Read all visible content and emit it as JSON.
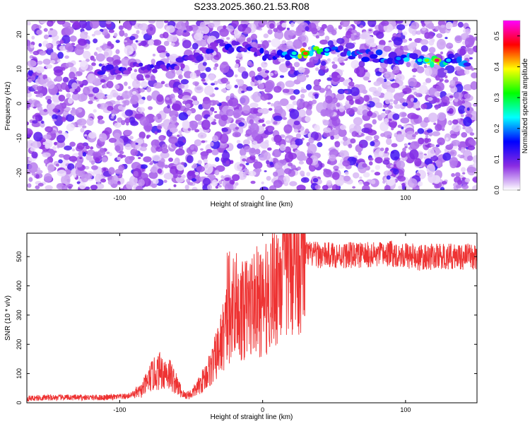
{
  "figure": {
    "title": "S233.2025.360.21.53.R08"
  },
  "chart_data": [
    {
      "type": "heatmap",
      "xlabel": "Height of straight line (km)",
      "ylabel": "Frequency (Hz)",
      "xlim": [
        -165,
        150
      ],
      "ylim": [
        -25,
        24
      ],
      "xticks": [
        -100,
        0,
        100
      ],
      "yticks": [
        -20,
        -10,
        0,
        10,
        20
      ],
      "colorbar": {
        "label": "Normalized spectral amplitude",
        "range": [
          0,
          0.55
        ],
        "ticks": [
          0.0,
          0.1,
          0.2,
          0.3,
          0.4,
          0.5
        ],
        "colormap": [
          "#ffffff",
          "#8a2be2",
          "#0000ff",
          "#00ffff",
          "#00ff00",
          "#ffff00",
          "#ff0000",
          "#ff00ff"
        ]
      },
      "ridge": {
        "note_free": true,
        "points": [
          {
            "x": -115,
            "y": 9,
            "v": 0.12
          },
          {
            "x": -95,
            "y": 10,
            "v": 0.14
          },
          {
            "x": -60,
            "y": 11,
            "v": 0.12
          },
          {
            "x": -30,
            "y": 17,
            "v": 0.15
          },
          {
            "x": -10,
            "y": 16,
            "v": 0.14
          },
          {
            "x": 5,
            "y": 13,
            "v": 0.16
          },
          {
            "x": 12,
            "y": 14,
            "v": 0.18
          },
          {
            "x": 22,
            "y": 14.5,
            "v": 0.25
          },
          {
            "x": 30,
            "y": 14.5,
            "v": 0.45
          },
          {
            "x": 45,
            "y": 15.5,
            "v": 0.22
          },
          {
            "x": 70,
            "y": 14,
            "v": 0.18
          },
          {
            "x": 95,
            "y": 13,
            "v": 0.2
          },
          {
            "x": 110,
            "y": 12.5,
            "v": 0.25
          },
          {
            "x": 115,
            "y": 12.5,
            "v": 0.35
          },
          {
            "x": 122,
            "y": 12.5,
            "v": 0.5
          },
          {
            "x": 130,
            "y": 12.5,
            "v": 0.22
          },
          {
            "x": 145,
            "y": 12.5,
            "v": 0.18
          }
        ]
      }
    },
    {
      "type": "line",
      "xlabel": "Height of straight line (km)",
      "ylabel": "SNR (10 * v/v)",
      "xlim": [
        -165,
        150
      ],
      "ylim": [
        0,
        580
      ],
      "xticks": [
        -100,
        0,
        100
      ],
      "yticks": [
        0,
        100,
        200,
        300,
        400,
        500
      ],
      "line_color": "#ee3333",
      "series": [
        {
          "x": [
            -165,
            -150,
            -130,
            -110,
            -95,
            -85,
            -78,
            -72,
            -65,
            -60,
            -55,
            -50,
            -45,
            -40,
            -35,
            -30,
            -25,
            -22,
            -20,
            -18,
            -15,
            -10,
            -5,
            0,
            5,
            10,
            15,
            20,
            25,
            30,
            40,
            50,
            60,
            70,
            80,
            90,
            100,
            110,
            120,
            130,
            140,
            150
          ],
          "y": [
            15,
            18,
            18,
            18,
            22,
            40,
            90,
            110,
            100,
            60,
            25,
            30,
            55,
            90,
            130,
            190,
            270,
            320,
            290,
            300,
            310,
            330,
            350,
            330,
            380,
            420,
            470,
            495,
            505,
            510,
            505,
            505,
            505,
            505,
            505,
            510,
            505,
            495,
            500,
            500,
            500,
            500
          ]
        }
      ]
    }
  ]
}
